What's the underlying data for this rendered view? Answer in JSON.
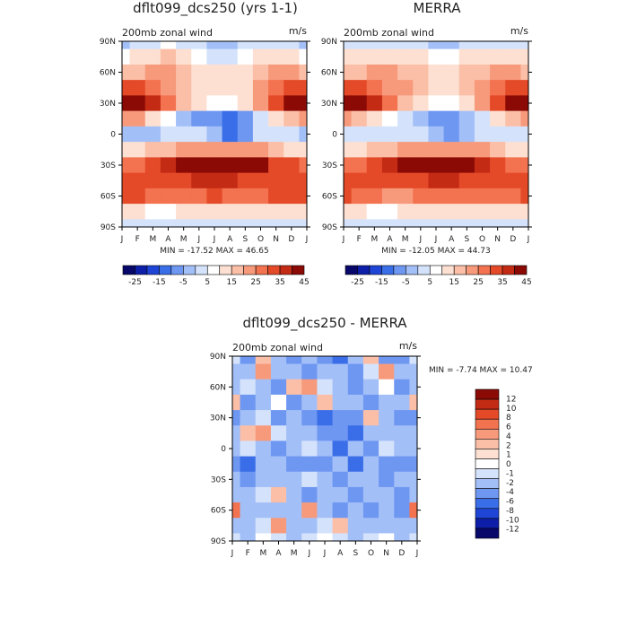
{
  "colors": {
    "panel_scale": [
      "#08086b",
      "#0d1fa8",
      "#1f45d6",
      "#3a6ee8",
      "#6e97f2",
      "#a3bff7",
      "#d4e3fb",
      "#ffffff",
      "#fde0d2",
      "#fbbfa7",
      "#f79a7c",
      "#f3724f",
      "#e44a28",
      "#c42b15",
      "#8b0a06"
    ],
    "diff_scale": [
      "#08086b",
      "#0d1fa8",
      "#1f45d6",
      "#3a6ee8",
      "#6e97f2",
      "#a3bff7",
      "#d4e3fb",
      "#ffffff",
      "#fde0d2",
      "#fbbfa7",
      "#f79a7c",
      "#f3724f",
      "#e44a28",
      "#c42b15",
      "#8b0a06"
    ]
  },
  "chart_data": [
    {
      "type": "heatmap",
      "title": "dflt099_dcs250 (yrs 1-1)",
      "subtitle_left": "200mb zonal wind",
      "units": "m/s",
      "x_ticks": [
        "J",
        "F",
        "M",
        "A",
        "M",
        "J",
        "J",
        "A",
        "S",
        "O",
        "N",
        "D",
        "J"
      ],
      "y_ticks": [
        "90N",
        "60N",
        "30N",
        "0",
        "30S",
        "60S",
        "90S"
      ],
      "stats": "MIN = -17.52 MAX =  46.65",
      "colorbar_labels": [
        "-25",
        "-15",
        "-5",
        "5",
        "15",
        "25",
        "35",
        "45"
      ],
      "colorbar_levels": [
        -30,
        -25,
        -20,
        -15,
        -10,
        -5,
        0,
        5,
        10,
        15,
        20,
        25,
        30,
        35,
        40,
        45
      ],
      "x": [
        "J",
        "F",
        "M",
        "A",
        "M",
        "J",
        "J",
        "A",
        "S",
        "O",
        "N",
        "D",
        "J"
      ],
      "y": [
        90,
        75,
        60,
        45,
        30,
        15,
        0,
        -15,
        -30,
        -45,
        -60,
        -75,
        -90
      ],
      "z": [
        [
          -5,
          -2,
          0,
          2,
          0,
          -3,
          -5,
          -6,
          -4,
          -2,
          0,
          -2,
          -5
        ],
        [
          4,
          6,
          10,
          12,
          8,
          4,
          0,
          0,
          3,
          6,
          10,
          8,
          4
        ],
        [
          14,
          12,
          16,
          18,
          14,
          10,
          8,
          7,
          9,
          12,
          18,
          16,
          14
        ],
        [
          30,
          28,
          24,
          20,
          14,
          10,
          8,
          8,
          10,
          16,
          22,
          28,
          30
        ],
        [
          45,
          42,
          34,
          24,
          14,
          6,
          2,
          2,
          6,
          16,
          28,
          38,
          45
        ],
        [
          20,
          16,
          10,
          2,
          -6,
          -10,
          -14,
          -16,
          -10,
          0,
          8,
          14,
          20
        ],
        [
          -6,
          -6,
          -6,
          -4,
          -2,
          -4,
          -8,
          -16,
          -10,
          -4,
          -2,
          -4,
          -6
        ],
        [
          8,
          10,
          12,
          14,
          16,
          18,
          18,
          20,
          18,
          16,
          14,
          10,
          8
        ],
        [
          22,
          24,
          28,
          32,
          36,
          40,
          42,
          46,
          42,
          36,
          30,
          26,
          22
        ],
        [
          30,
          28,
          26,
          26,
          28,
          32,
          34,
          32,
          30,
          30,
          30,
          30,
          30
        ],
        [
          28,
          26,
          24,
          22,
          22,
          24,
          26,
          24,
          22,
          24,
          26,
          26,
          28
        ],
        [
          8,
          6,
          4,
          4,
          6,
          8,
          10,
          8,
          6,
          6,
          8,
          8,
          8
        ],
        [
          -4,
          -4,
          -2,
          -2,
          0,
          0,
          0,
          0,
          0,
          -2,
          -2,
          -4,
          -4
        ]
      ]
    },
    {
      "type": "heatmap",
      "title": "MERRA",
      "subtitle_left": "200mb zonal wind",
      "units": "m/s",
      "x_ticks": [
        "J",
        "F",
        "M",
        "A",
        "M",
        "J",
        "J",
        "A",
        "S",
        "O",
        "N",
        "D",
        "J"
      ],
      "y_ticks": [
        "90N",
        "60N",
        "30N",
        "0",
        "30S",
        "60S",
        "90S"
      ],
      "stats": "MIN = -12.05 MAX =  44.73",
      "colorbar_labels": [
        "-25",
        "-15",
        "-5",
        "5",
        "15",
        "25",
        "35",
        "45"
      ],
      "colorbar_levels": [
        -30,
        -25,
        -20,
        -15,
        -10,
        -5,
        0,
        5,
        10,
        15,
        20,
        25,
        30,
        35,
        40,
        45
      ],
      "x": [
        "J",
        "F",
        "M",
        "A",
        "M",
        "J",
        "J",
        "A",
        "S",
        "O",
        "N",
        "D",
        "J"
      ],
      "y": [
        90,
        75,
        60,
        45,
        30,
        15,
        0,
        -15,
        -30,
        -45,
        -60,
        -75,
        -90
      ],
      "z": [
        [
          -4,
          -2,
          0,
          0,
          -2,
          -4,
          -6,
          -6,
          -4,
          -2,
          0,
          -2,
          -4
        ],
        [
          6,
          8,
          10,
          10,
          8,
          6,
          4,
          4,
          6,
          8,
          10,
          8,
          6
        ],
        [
          14,
          14,
          16,
          16,
          14,
          12,
          10,
          10,
          12,
          14,
          16,
          16,
          14
        ],
        [
          30,
          28,
          24,
          20,
          16,
          12,
          10,
          10,
          12,
          18,
          24,
          28,
          30
        ],
        [
          44,
          40,
          32,
          22,
          14,
          8,
          4,
          4,
          8,
          18,
          30,
          38,
          44
        ],
        [
          18,
          14,
          8,
          2,
          -4,
          -8,
          -10,
          -12,
          -8,
          0,
          8,
          12,
          18
        ],
        [
          -4,
          -4,
          -4,
          -2,
          0,
          -2,
          -6,
          -10,
          -6,
          -2,
          0,
          -2,
          -4
        ],
        [
          8,
          10,
          12,
          14,
          16,
          18,
          18,
          20,
          18,
          16,
          14,
          10,
          8
        ],
        [
          22,
          24,
          28,
          32,
          36,
          40,
          42,
          44,
          40,
          34,
          28,
          24,
          22
        ],
        [
          30,
          28,
          26,
          26,
          28,
          30,
          32,
          32,
          30,
          28,
          28,
          28,
          30
        ],
        [
          26,
          24,
          22,
          20,
          20,
          22,
          24,
          24,
          22,
          22,
          24,
          24,
          26
        ],
        [
          8,
          6,
          4,
          4,
          6,
          8,
          8,
          8,
          6,
          6,
          6,
          8,
          8
        ],
        [
          -4,
          -4,
          -2,
          -2,
          0,
          0,
          0,
          0,
          0,
          -2,
          -2,
          -4,
          -4
        ]
      ]
    },
    {
      "type": "heatmap",
      "title": "dflt099_dcs250 - MERRA",
      "subtitle_left": "200mb zonal wind",
      "units": "m/s",
      "x_ticks": [
        "J",
        "F",
        "M",
        "A",
        "M",
        "J",
        "J",
        "A",
        "S",
        "O",
        "N",
        "D",
        "J"
      ],
      "y_ticks": [
        "90N",
        "60N",
        "30N",
        "0",
        "30S",
        "60S",
        "90S"
      ],
      "stats": "MIN =  -7.74 MAX =  10.47",
      "colorbar_labels": [
        "12",
        "10",
        "8",
        "6",
        "4",
        "2",
        "1",
        "0",
        "-1",
        "-2",
        "-4",
        "-6",
        "-8",
        "-10",
        "-12"
      ],
      "colorbar_levels": [
        -12,
        -10,
        -8,
        -6,
        -4,
        -2,
        -1,
        0,
        1,
        2,
        4,
        6,
        8,
        10,
        12
      ],
      "x": [
        "J",
        "F",
        "M",
        "A",
        "M",
        "J",
        "J",
        "A",
        "S",
        "O",
        "N",
        "D",
        "J"
      ],
      "y": [
        90,
        75,
        60,
        45,
        30,
        15,
        0,
        -15,
        -30,
        -45,
        -60,
        -75,
        -90
      ],
      "z": [
        [
          -1,
          -4,
          2,
          -3,
          -5,
          -2,
          -4,
          -6,
          -3,
          2,
          -4,
          -4,
          -1
        ],
        [
          -2,
          -3,
          3,
          -2,
          -2,
          -4,
          -2,
          -3,
          -5,
          -1,
          3,
          -2,
          -2
        ],
        [
          -3,
          -1,
          -2,
          -4,
          2,
          3,
          -1,
          -2,
          -4,
          -2,
          0,
          -5,
          -3
        ],
        [
          2,
          -4,
          -2,
          0,
          -5,
          -3,
          2,
          -3,
          -2,
          -4,
          -2,
          -3,
          2
        ],
        [
          -4,
          -3,
          -1,
          -4,
          -3,
          -4,
          -6,
          -5,
          -4,
          2,
          -3,
          -4,
          -4
        ],
        [
          -2,
          2,
          3,
          -1,
          -2,
          -3,
          -4,
          -5,
          -6,
          -3,
          -2,
          -3,
          -2
        ],
        [
          -3,
          -1,
          -2,
          -4,
          -2,
          -1,
          -2,
          -6,
          -3,
          -5,
          -1,
          -2,
          -3
        ],
        [
          -4,
          -6,
          -2,
          -2,
          -4,
          -4,
          -5,
          -3,
          -6,
          -3,
          -4,
          -5,
          -4
        ],
        [
          -3,
          -4,
          -2,
          -3,
          -2,
          -1,
          -2,
          -4,
          -2,
          -3,
          -5,
          -2,
          -3
        ],
        [
          -2,
          -3,
          -1,
          2,
          -2,
          -4,
          -3,
          -2,
          -4,
          -3,
          -2,
          -4,
          -2
        ],
        [
          6,
          -2,
          -3,
          -2,
          -3,
          3,
          -2,
          -4,
          -3,
          -5,
          -2,
          -4,
          6
        ],
        [
          -3,
          -2,
          -1,
          3,
          -2,
          -3,
          -1,
          2,
          -2,
          -3,
          -2,
          -3,
          -3
        ],
        [
          -1,
          -2,
          0,
          -1,
          -2,
          -1,
          0,
          -1,
          -2,
          -1,
          0,
          -2,
          -1
        ]
      ]
    }
  ]
}
